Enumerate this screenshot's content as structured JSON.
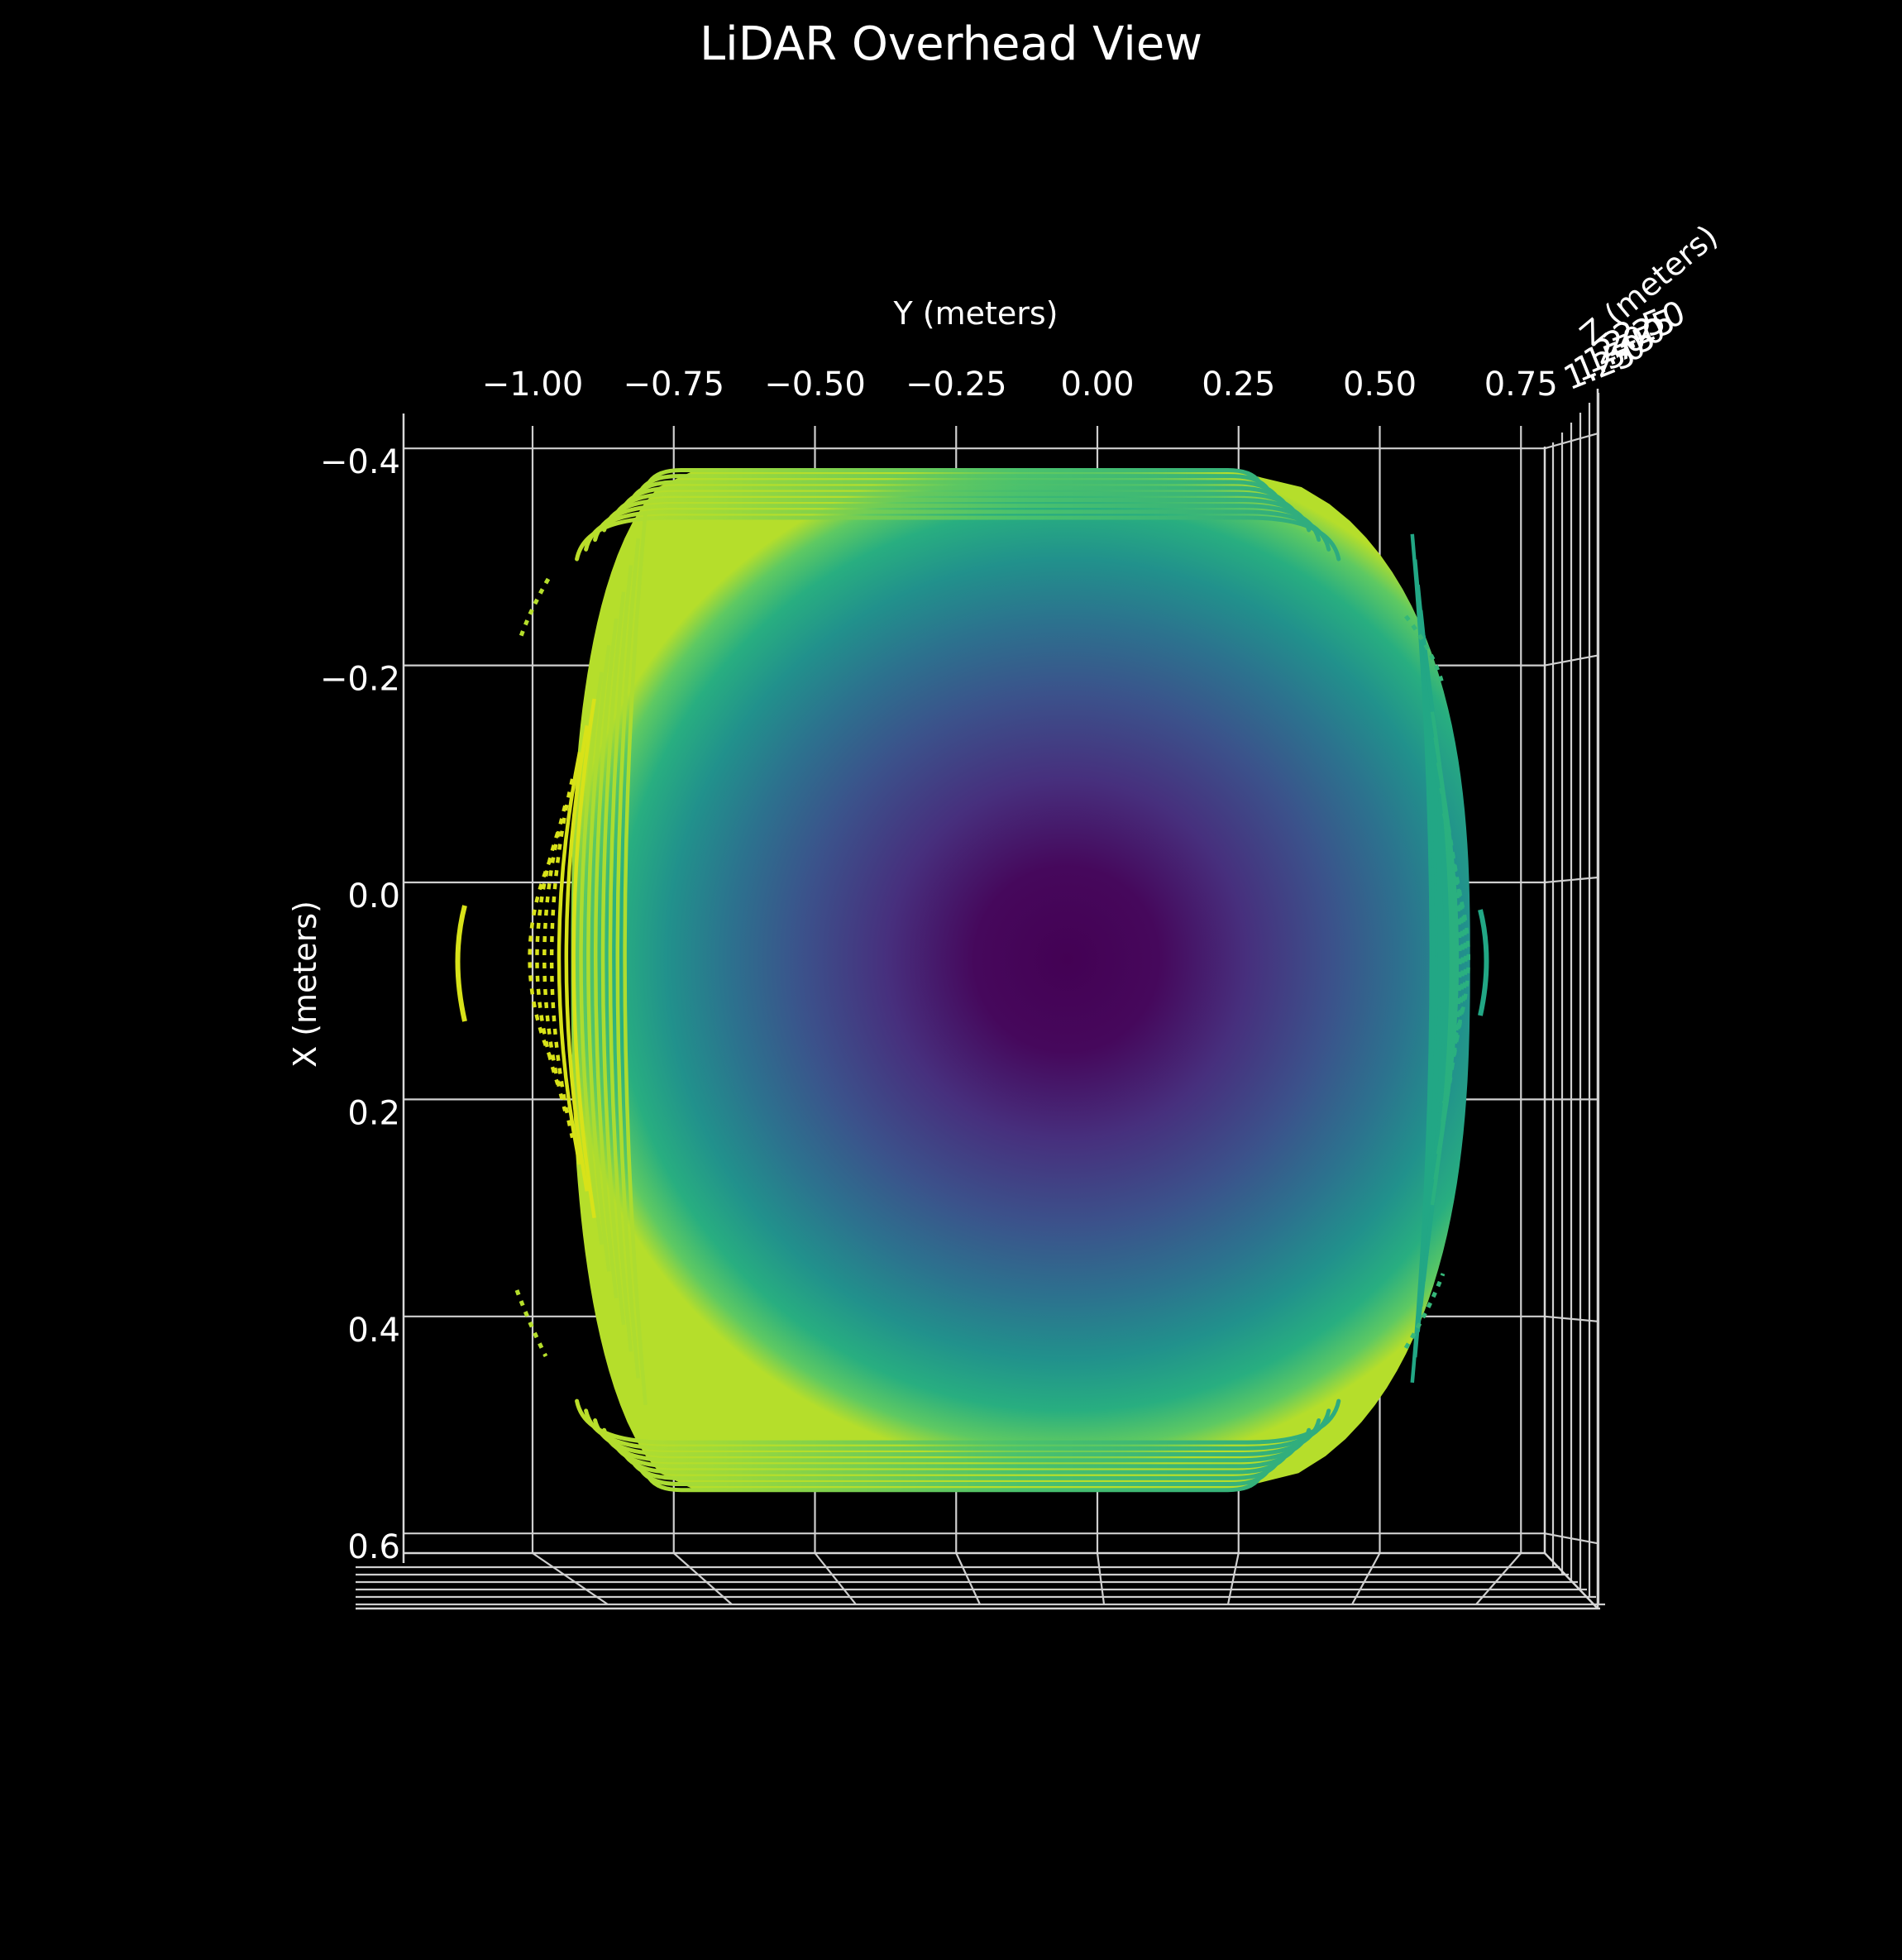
{
  "chart_data": {
    "type": "scatter",
    "title": "LiDAR Overhead View",
    "xlabel": "Y (meters)",
    "ylabel": "X (meters)",
    "zlabel": "Z (meters)",
    "x_axis": {
      "quantity": "Y",
      "ticks": [
        -1.0,
        -0.75,
        -0.5,
        -0.25,
        0.0,
        0.25,
        0.5,
        0.75
      ],
      "tick_labels": [
        "−1.00",
        "−0.75",
        "−0.50",
        "−0.25",
        "0.00",
        "0.25",
        "0.50",
        "0.75"
      ],
      "range": [
        -1.0,
        0.75
      ]
    },
    "y_axis": {
      "quantity": "X",
      "ticks": [
        -0.4,
        -0.2,
        0.0,
        0.2,
        0.4,
        0.6
      ],
      "tick_labels": [
        "−0.4",
        "−0.2",
        "0.0",
        "0.2",
        "0.4",
        "0.6"
      ],
      "inverted": true,
      "range": [
        -0.4,
        0.6
      ]
    },
    "z_axis": {
      "quantity": "Z",
      "tick_labels": [
        "1.25",
        "1.50",
        "1.75",
        "2.00",
        "2.25",
        "2.50"
      ],
      "note_visible": "tick labels overlap in the edge-on view"
    },
    "point_cloud": {
      "description_visible": "dense rounded-rectangle scan pattern, rows curved at the ends, colored by depth",
      "colormap": "viridis",
      "y_extent": [
        -0.8,
        0.25
      ],
      "x_extent": [
        -0.38,
        0.56
      ],
      "row_count": 56,
      "ring_center": [
        -0.05,
        0.07
      ]
    },
    "grid": true,
    "background": "#000000",
    "colors": {
      "grid": "#cfcfcf",
      "text": "#ffffff",
      "viridis_low": "#440154",
      "viridis_mid": "#21918c",
      "viridis_high": "#fde725"
    }
  }
}
